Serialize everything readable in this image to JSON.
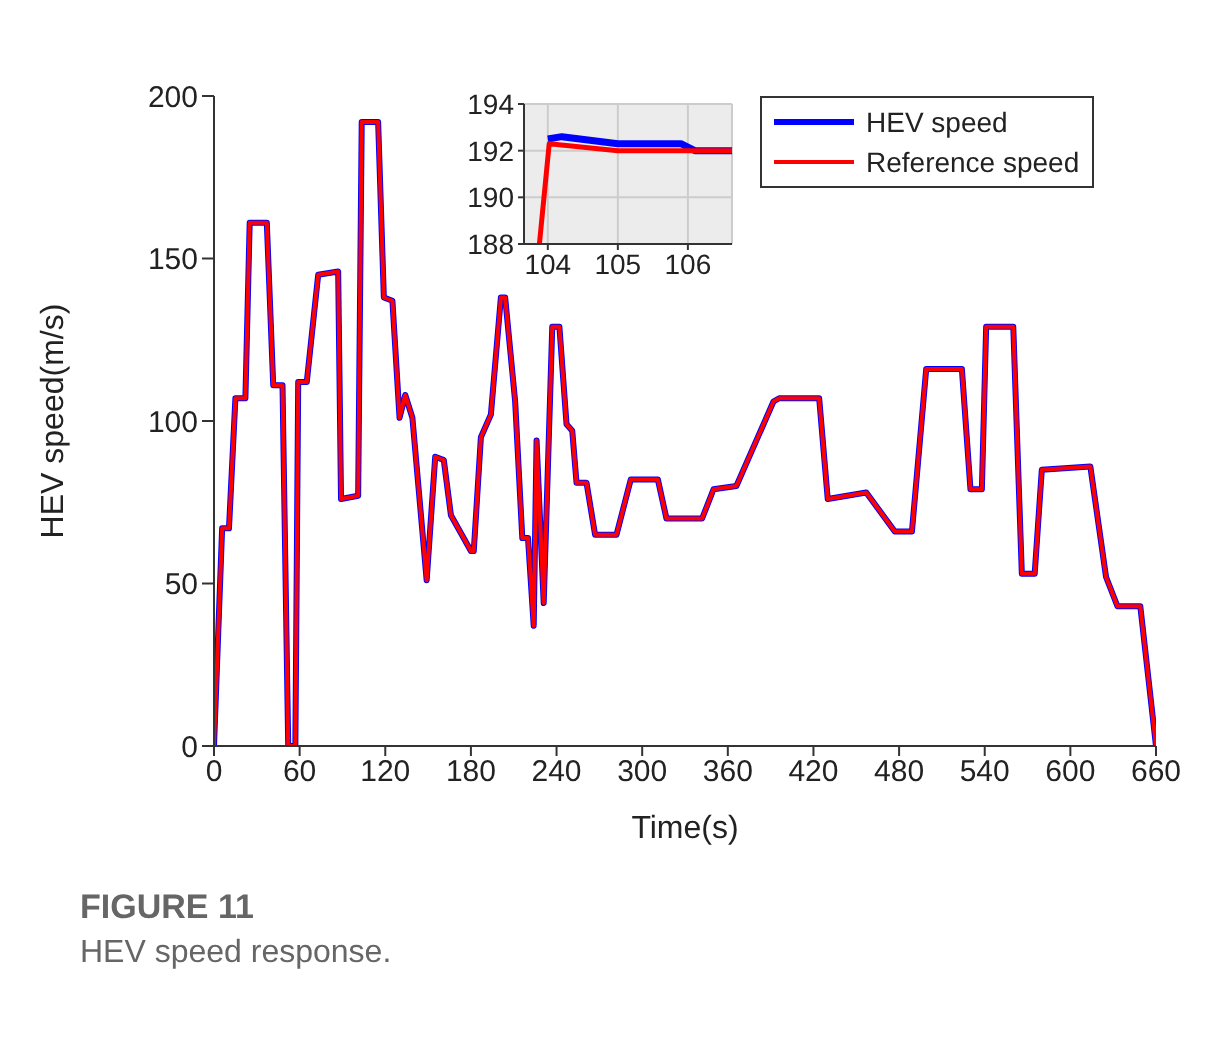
{
  "chart_data": [
    {
      "type": "line",
      "xlabel": "Time(s)",
      "ylabel": "HEV speed(m/s)",
      "annotations": [
        "FIGURE 11",
        "HEV speed response."
      ],
      "x": [
        0,
        5.7,
        10.5,
        15,
        22,
        25,
        37,
        41.5,
        48,
        52,
        57,
        59,
        65,
        73,
        87,
        89,
        101,
        103.5,
        115,
        119,
        125,
        130,
        134,
        139,
        149,
        155,
        161,
        166,
        180,
        182,
        187,
        194,
        201,
        204,
        211,
        216,
        220,
        224,
        226,
        231,
        237,
        242,
        247,
        251,
        254,
        261,
        267,
        282,
        292,
        311,
        317,
        342,
        350,
        366,
        392,
        396,
        424,
        430,
        457,
        477,
        489,
        499,
        524,
        530,
        538,
        541,
        560,
        566,
        575,
        580,
        614,
        625,
        633,
        649,
        660
      ],
      "series": [
        {
          "name": "HEV speed",
          "color": "#0000ff",
          "values": [
            0,
            67,
            67,
            107,
            107,
            161,
            161,
            111,
            111,
            0,
            0,
            112,
            112,
            145,
            146,
            76,
            77,
            192,
            192,
            138,
            137,
            101,
            108,
            101,
            51,
            89,
            88,
            71,
            60,
            60,
            95,
            102,
            138,
            138,
            106,
            64,
            64,
            37,
            94,
            44,
            129,
            129,
            99,
            97,
            81,
            81,
            65,
            65,
            82,
            82,
            70,
            70,
            79,
            80,
            106,
            107,
            107,
            76,
            78,
            66,
            66,
            116,
            116,
            79,
            79,
            129,
            129,
            53,
            53,
            85,
            86,
            52,
            43,
            43,
            0
          ]
        },
        {
          "name": "Reference speed",
          "color": "#ff0000",
          "values": [
            0,
            67,
            67,
            107,
            107,
            161,
            161,
            111,
            111,
            0,
            0,
            112,
            112,
            145,
            146,
            76,
            77,
            192,
            192,
            138,
            137,
            101,
            108,
            101,
            51,
            89,
            88,
            71,
            60,
            60,
            95,
            102,
            138,
            138,
            106,
            64,
            64,
            37,
            94,
            44,
            129,
            129,
            99,
            97,
            81,
            81,
            65,
            65,
            82,
            82,
            70,
            70,
            79,
            80,
            106,
            107,
            107,
            76,
            78,
            66,
            66,
            116,
            116,
            79,
            79,
            129,
            129,
            53,
            53,
            85,
            86,
            52,
            43,
            43,
            0
          ]
        }
      ],
      "xlim": [
        0,
        660
      ],
      "xticks": [
        0,
        60,
        120,
        180,
        240,
        300,
        360,
        420,
        480,
        540,
        600,
        660
      ],
      "ylim": [
        0,
        200
      ],
      "yticks": [
        0,
        50,
        100,
        150,
        200
      ],
      "grid": false,
      "legend": "top right"
    },
    {
      "type": "line",
      "series": [
        {
          "color": "#0000ff",
          "x": [
            104.0,
            104.2,
            105,
            105.9,
            106.1,
            106.63
          ],
          "values": [
            192.5,
            192.6,
            192.3,
            192.3,
            192.0,
            192.0
          ]
        },
        {
          "color": "#ff0000",
          "x": [
            103.88,
            104.02,
            105,
            106.63
          ],
          "values": [
            188,
            192.3,
            192.0,
            192.0
          ]
        }
      ],
      "xlim": [
        103.66,
        106.63
      ],
      "xticks": [
        104,
        105,
        106
      ],
      "ylim": [
        188,
        194
      ],
      "yticks": [
        188,
        190,
        192,
        194
      ],
      "grid": true
    }
  ]
}
